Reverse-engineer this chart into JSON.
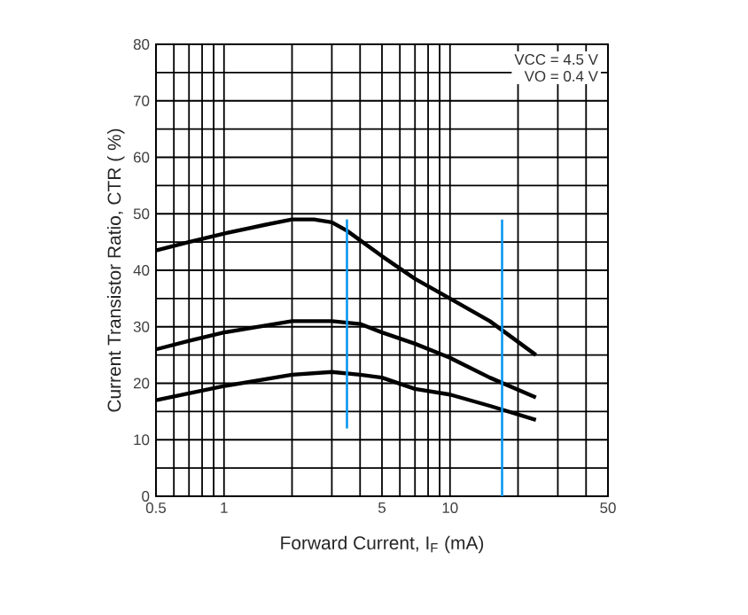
{
  "chart_data": {
    "type": "line",
    "xlabel": "Forward Current, I$_{F}$ (mA)",
    "ylabel": "Current Transistor Ratio, CTR ( %)",
    "annotations": [
      "VCC = 4.5 V",
      "VO = 0.4 V"
    ],
    "log": "x",
    "grid": true,
    "marker": "none",
    "line_style": "solid",
    "xlim": [
      0.5,
      50
    ],
    "ylim": [
      0,
      80
    ],
    "xticks": [
      0.5,
      {
        "value": 0.6,
        "label": null
      },
      {
        "value": 0.7,
        "label": null
      },
      {
        "value": 0.8,
        "label": null
      },
      {
        "value": 0.9,
        "label": null
      },
      1,
      {
        "value": 2,
        "label": null
      },
      {
        "value": 3,
        "label": null
      },
      {
        "value": 4,
        "label": null
      },
      5,
      {
        "value": 6,
        "label": null
      },
      {
        "value": 7,
        "label": null
      },
      {
        "value": 8,
        "label": null
      },
      {
        "value": 9,
        "label": null
      },
      10,
      {
        "value": 20,
        "label": null
      },
      {
        "value": 30,
        "label": null
      },
      {
        "value": 40,
        "label": null
      },
      50
    ],
    "yticks": [
      0,
      {
        "value": 5,
        "label": null
      },
      10,
      {
        "value": 15,
        "label": null
      },
      20,
      {
        "value": 25,
        "label": null
      },
      30,
      {
        "value": 35,
        "label": null
      },
      40,
      {
        "value": 45,
        "label": null
      },
      50,
      {
        "value": 55,
        "label": null
      },
      60,
      {
        "value": 65,
        "label": null
      },
      70,
      {
        "value": 75,
        "label": null
      },
      80
    ],
    "series": [
      {
        "color": "#000000",
        "x": [
          0.5,
          0.7,
          1,
          1.5,
          2,
          2.5,
          3,
          3.5,
          5,
          7,
          10,
          15,
          24
        ],
        "values": [
          43.5,
          45,
          46.5,
          48,
          49,
          49,
          48.5,
          47,
          42.5,
          38.5,
          35,
          31,
          25
        ]
      },
      {
        "color": "#000000",
        "x": [
          0.5,
          0.7,
          1,
          2,
          3,
          4,
          5,
          7,
          10,
          15,
          24
        ],
        "values": [
          26,
          27.5,
          29,
          31,
          31,
          30.5,
          29,
          27,
          24.5,
          21,
          17.5
        ]
      },
      {
        "color": "#000000",
        "x": [
          0.5,
          1,
          2,
          3,
          4,
          5,
          7,
          10,
          15,
          24
        ],
        "values": [
          17,
          19.5,
          21.5,
          22,
          21.5,
          21,
          19,
          18,
          16,
          13.5
        ]
      },
      {
        "color": "#0a96f0",
        "x": [
          3.5,
          3.5
        ],
        "values": [
          12,
          49
        ]
      },
      {
        "color": "#0a96f0",
        "x": [
          17,
          17
        ],
        "values": [
          0,
          49
        ]
      }
    ]
  }
}
